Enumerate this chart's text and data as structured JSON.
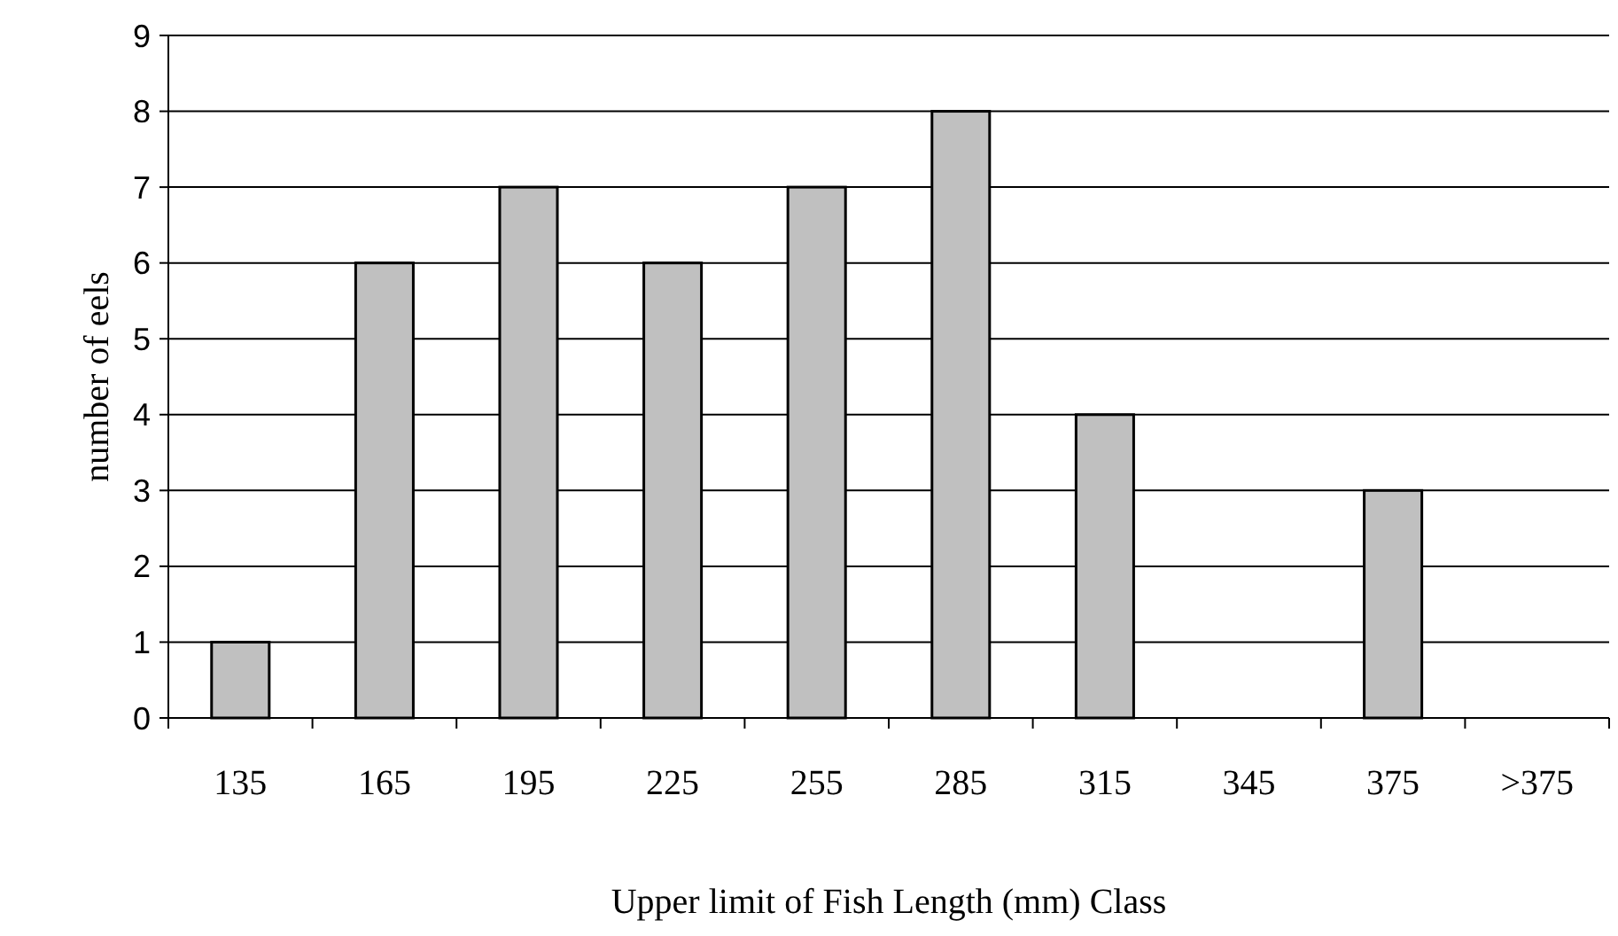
{
  "chart_data": {
    "type": "bar",
    "xlabel": "Upper limit of Fish Length (mm) Class",
    "ylabel": "number of eels",
    "categories": [
      "135",
      "165",
      "195",
      "225",
      "255",
      "285",
      "315",
      "345",
      "375",
      ">375"
    ],
    "values": [
      1,
      6,
      7,
      6,
      7,
      8,
      4,
      0,
      3,
      0
    ],
    "color": "#c0c0c0",
    "ylim": [
      0,
      9
    ],
    "yticks": [
      0,
      1,
      2,
      3,
      4,
      5,
      6,
      7,
      8,
      9
    ],
    "grid": "y"
  }
}
